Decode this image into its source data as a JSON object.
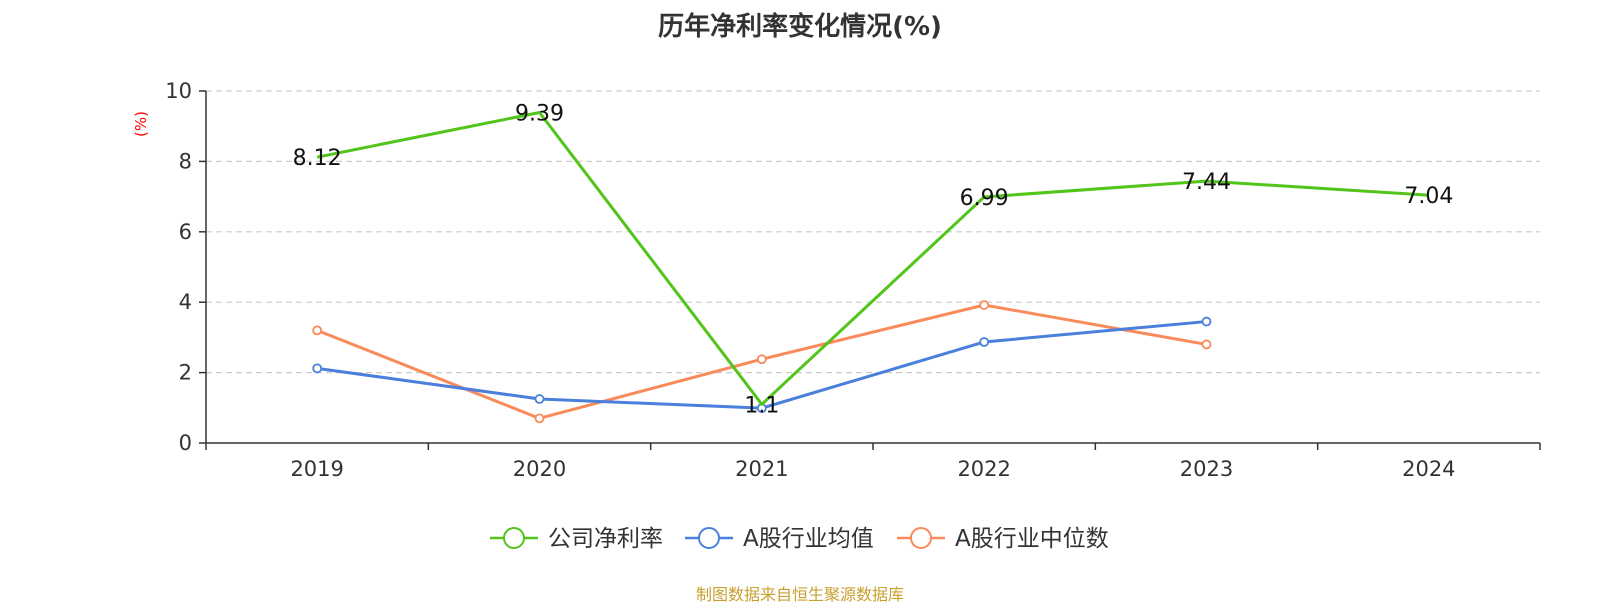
{
  "chart_data": {
    "type": "line",
    "title": "历年净利率变化情况(%)",
    "ylabel": "(%)",
    "categories": [
      "2019",
      "2020",
      "2021",
      "2022",
      "2023",
      "2024"
    ],
    "ylim": [
      0,
      10
    ],
    "yticks": [
      0,
      2,
      4,
      6,
      8,
      10
    ],
    "grid": true,
    "legend_position": "bottom",
    "series": [
      {
        "name": "公司净利率",
        "color": "#52c41a",
        "values": [
          8.12,
          9.39,
          1.1,
          6.99,
          7.44,
          7.04
        ],
        "labels": [
          "8.12",
          "9.39",
          "1.1",
          "6.99",
          "7.44",
          "7.04"
        ],
        "show_labels": true
      },
      {
        "name": "A股行业均值",
        "color": "#4a7fdc",
        "values": [
          2.12,
          1.25,
          0.99,
          2.87,
          3.45,
          null
        ],
        "show_labels": false
      },
      {
        "name": "A股行业中位数",
        "color": "#f98b5b",
        "values": [
          3.2,
          0.7,
          2.38,
          3.92,
          2.8,
          null
        ],
        "show_labels": false
      }
    ]
  },
  "footer": {
    "source": "制图数据来自恒生聚源数据库"
  }
}
